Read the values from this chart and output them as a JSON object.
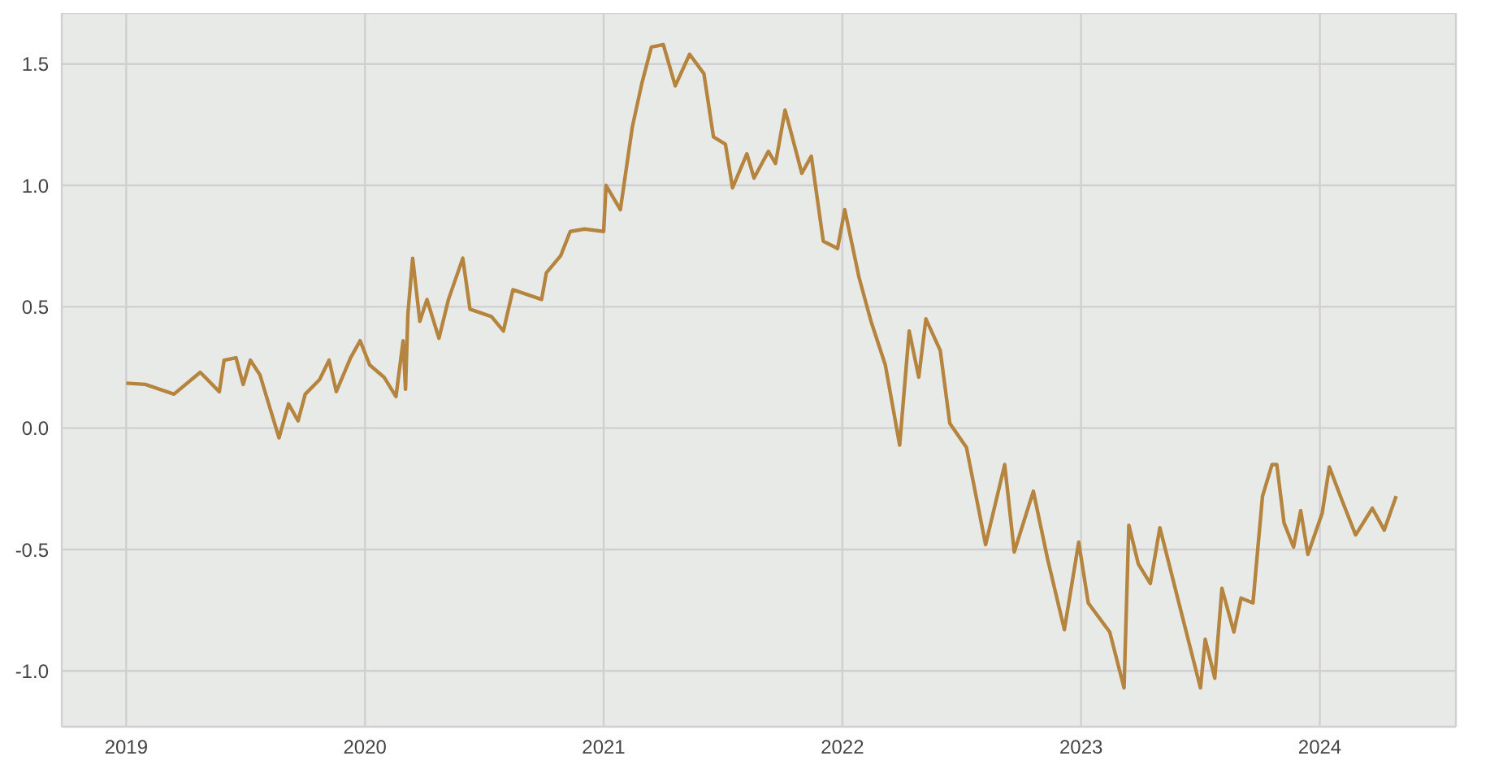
{
  "chart_data": {
    "type": "line",
    "xlim": [
      2018.73,
      2024.57
    ],
    "xticks": [
      2019,
      2020,
      2021,
      2022,
      2023,
      2024
    ],
    "ylim": [
      -1.23,
      1.71
    ],
    "yticks": [
      {
        "value": -1,
        "label": "-1.0"
      },
      {
        "value": -0.5,
        "label": "-0.5"
      },
      {
        "value": 0,
        "label": "0.0"
      },
      0.5,
      {
        "value": 1,
        "label": "1.0"
      },
      1.5
    ],
    "grid": true,
    "legend": false,
    "marker": "none",
    "line_style": "solid",
    "x": [
      2019.0,
      2019.08,
      2019.2,
      2019.31,
      2019.39,
      2019.41,
      2019.46,
      2019.49,
      2019.52,
      2019.56,
      2019.6,
      2019.64,
      2019.68,
      2019.72,
      2019.75,
      2019.81,
      2019.85,
      2019.88,
      2019.94,
      2019.98,
      2020.02,
      2020.08,
      2020.13,
      2020.16,
      2020.17,
      2020.18,
      2020.2,
      2020.23,
      2020.26,
      2020.31,
      2020.35,
      2020.41,
      2020.44,
      2020.53,
      2020.58,
      2020.62,
      2020.74,
      2020.76,
      2020.82,
      2020.86,
      2020.92,
      2021.0,
      2021.01,
      2021.07,
      2021.12,
      2021.16,
      2021.2,
      2021.25,
      2021.3,
      2021.36,
      2021.42,
      2021.46,
      2021.51,
      2021.54,
      2021.6,
      2021.63,
      2021.69,
      2021.72,
      2021.76,
      2021.79,
      2021.83,
      2021.87,
      2021.92,
      2021.98,
      2022.01,
      2022.07,
      2022.12,
      2022.18,
      2022.24,
      2022.28,
      2022.32,
      2022.35,
      2022.41,
      2022.45,
      2022.52,
      2022.6,
      2022.68,
      2022.72,
      2022.8,
      2022.86,
      2022.93,
      2022.99,
      2023.03,
      2023.12,
      2023.18,
      2023.2,
      2023.24,
      2023.29,
      2023.33,
      2023.42,
      2023.5,
      2023.52,
      2023.56,
      2023.59,
      2023.64,
      2023.67,
      2023.72,
      2023.76,
      2023.8,
      2023.82,
      2023.85,
      2023.89,
      2023.92,
      2023.95,
      2024.01,
      2024.04,
      2024.09,
      2024.15,
      2024.22,
      2024.27,
      2024.32
    ],
    "series": [
      {
        "color": "#b5843f",
        "values": [
          0.185,
          0.18,
          0.14,
          0.23,
          0.15,
          0.28,
          0.29,
          0.18,
          0.28,
          0.22,
          0.09,
          -0.04,
          0.1,
          0.03,
          0.14,
          0.2,
          0.28,
          0.15,
          0.29,
          0.36,
          0.26,
          0.21,
          0.13,
          0.36,
          0.16,
          0.47,
          0.7,
          0.44,
          0.53,
          0.37,
          0.53,
          0.7,
          0.49,
          0.46,
          0.4,
          0.57,
          0.53,
          0.64,
          0.71,
          0.81,
          0.82,
          0.81,
          1.0,
          0.9,
          1.24,
          1.42,
          1.57,
          1.58,
          1.41,
          1.54,
          1.46,
          1.2,
          1.17,
          0.99,
          1.13,
          1.03,
          1.14,
          1.09,
          1.31,
          1.2,
          1.05,
          1.12,
          0.77,
          0.74,
          0.9,
          0.62,
          0.44,
          0.26,
          -0.07,
          0.4,
          0.21,
          0.45,
          0.32,
          0.02,
          -0.08,
          -0.48,
          -0.15,
          -0.51,
          -0.26,
          -0.54,
          -0.83,
          -0.47,
          -0.72,
          -0.84,
          -1.07,
          -0.4,
          -0.56,
          -0.64,
          -0.41,
          -0.76,
          -1.07,
          -0.87,
          -1.03,
          -0.66,
          -0.84,
          -0.7,
          -0.72,
          -0.28,
          -0.15,
          -0.15,
          -0.39,
          -0.49,
          -0.34,
          -0.52,
          -0.35,
          -0.16,
          -0.29,
          -0.44,
          -0.33,
          -0.42,
          -0.28
        ]
      }
    ]
  }
}
